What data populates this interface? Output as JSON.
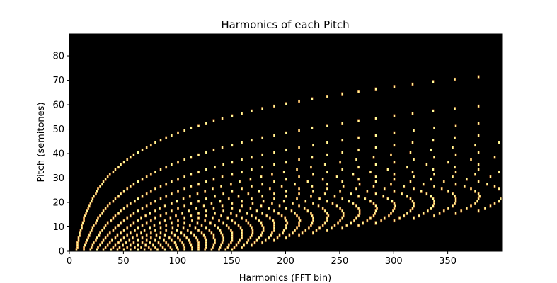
{
  "chart_data": {
    "type": "heatmap",
    "title": "Harmonics of each Pitch",
    "xlabel": "Harmonics (FFT bin)",
    "ylabel": "Pitch (semitones)",
    "xlim": [
      0,
      400
    ],
    "ylim": [
      0,
      89
    ],
    "x_ticks": [
      "0",
      "50",
      "100",
      "150",
      "200",
      "250",
      "300",
      "350"
    ],
    "x_tick_values": [
      0,
      50,
      100,
      150,
      200,
      250,
      300,
      350
    ],
    "y_ticks": [
      "0",
      "10",
      "20",
      "30",
      "40",
      "50",
      "60",
      "70",
      "80"
    ],
    "y_tick_values": [
      0,
      10,
      20,
      30,
      40,
      50,
      60,
      70,
      80
    ],
    "colormap": "afmhot",
    "background_color": "#000000",
    "mark_color": "#ffff9a",
    "edge_color": "#e06a2e",
    "fundamental_bin_at_pitch_0": 6.25,
    "harmonic_count": 24,
    "grid": false,
    "legend": "none"
  }
}
